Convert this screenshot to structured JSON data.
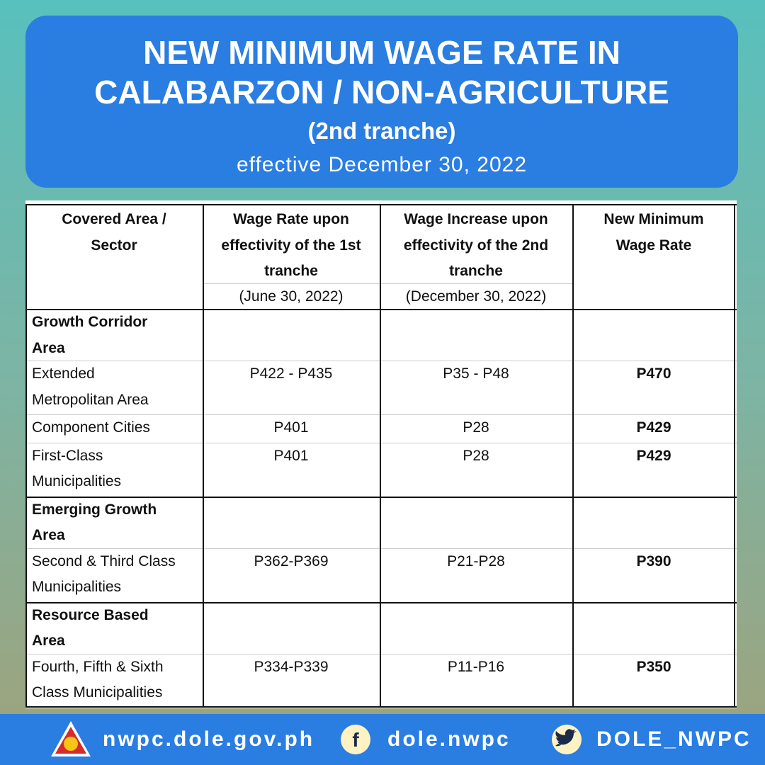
{
  "header": {
    "title": [
      "NEW MINIMUM WAGE RATE IN",
      "CALABARZON / NON-AGRICULTURE"
    ],
    "subtitle": "(2nd tranche)",
    "effective": "effective December 30, 2022"
  },
  "table": {
    "columns": [
      {
        "lines": [
          "Covered Area /",
          "Sector"
        ]
      },
      {
        "lines": [
          "Wage Rate upon",
          "effectivity of the 1st",
          "tranche"
        ],
        "date": "(June 30, 2022)"
      },
      {
        "lines": [
          "Wage Increase upon",
          "effectivity of the 2nd",
          "tranche"
        ],
        "date": "(December 30, 2022)"
      },
      {
        "lines": [
          "New Minimum",
          "Wage Rate"
        ]
      }
    ],
    "groups": [
      {
        "name": [
          "Growth Corridor",
          "Area"
        ],
        "rows": [
          {
            "area": [
              "Extended",
              "Metropolitan Area"
            ],
            "first": "P422 - P435",
            "increase": "P35 - P48",
            "new": "P470"
          },
          {
            "area": [
              "Component Cities"
            ],
            "first": "P401",
            "increase": "P28",
            "new": "P429"
          },
          {
            "area": [
              "First-Class",
              "Municipalities"
            ],
            "first": "P401",
            "increase": "P28",
            "new": "P429"
          }
        ]
      },
      {
        "name": [
          "Emerging Growth",
          "Area"
        ],
        "rows": [
          {
            "area": [
              "Second & Third Class",
              "Municipalities"
            ],
            "first": "P362-P369",
            "increase": "P21-P28",
            "new": "P390"
          }
        ]
      },
      {
        "name": [
          "Resource Based",
          "Area"
        ],
        "rows": [
          {
            "area": [
              "Fourth, Fifth & Sixth",
              "Class Municipalities"
            ],
            "first": "P334-P339",
            "increase": "P11-P16",
            "new": "P350"
          }
        ]
      }
    ]
  },
  "footer": {
    "website": "nwpc.dole.gov.ph",
    "facebook": "dole.nwpc",
    "twitter": "DOLE_NWPC"
  }
}
